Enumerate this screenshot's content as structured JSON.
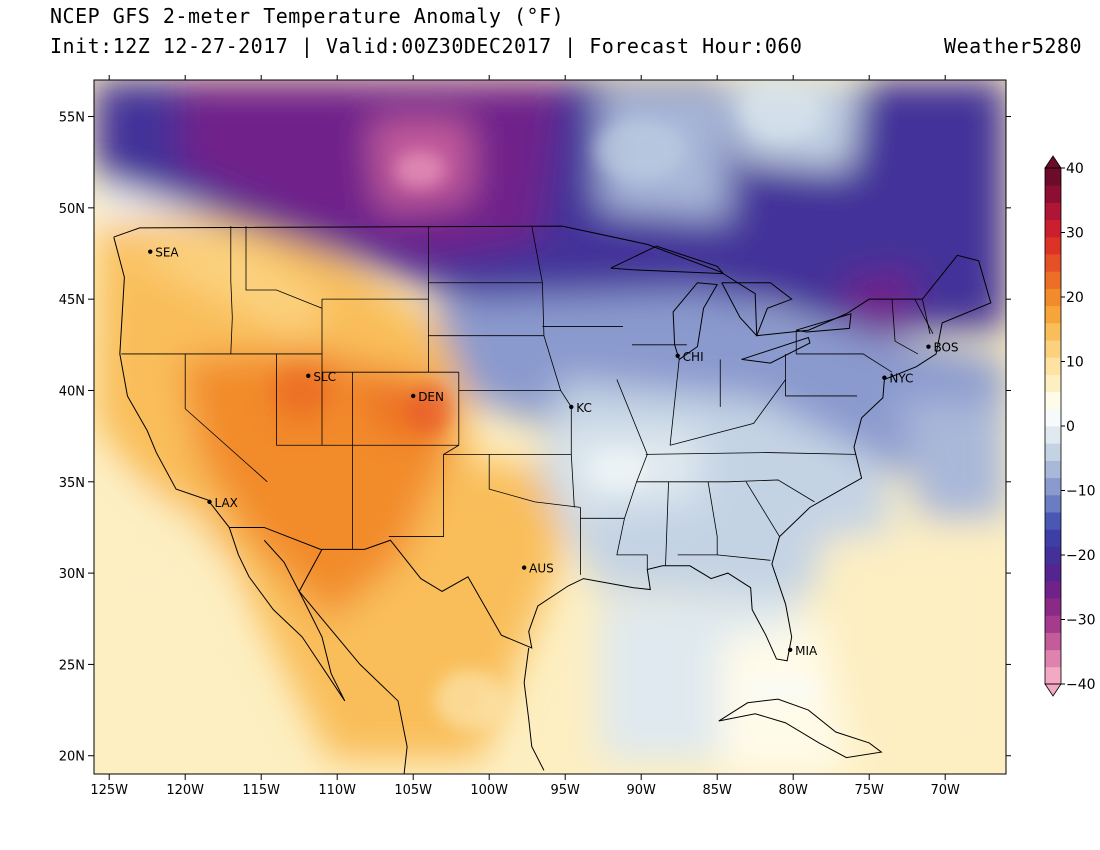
{
  "header": {
    "title": "NCEP GFS 2-meter Temperature Anomaly (°F)",
    "subtitle": "Init:12Z 12-27-2017 | Valid:00Z30DEC2017 | Forecast Hour:060",
    "brand": "Weather5280"
  },
  "map": {
    "lon_range": [
      -126,
      -66
    ],
    "lat_range": [
      19,
      57
    ],
    "lon_ticks": [
      {
        "value": -125,
        "label": "125W"
      },
      {
        "value": -120,
        "label": "120W"
      },
      {
        "value": -115,
        "label": "115W"
      },
      {
        "value": -110,
        "label": "110W"
      },
      {
        "value": -105,
        "label": "105W"
      },
      {
        "value": -100,
        "label": "100W"
      },
      {
        "value": -95,
        "label": "95W"
      },
      {
        "value": -90,
        "label": "90W"
      },
      {
        "value": -85,
        "label": "85W"
      },
      {
        "value": -80,
        "label": "80W"
      },
      {
        "value": -75,
        "label": "75W"
      },
      {
        "value": -70,
        "label": "70W"
      }
    ],
    "lat_ticks": [
      {
        "value": 55,
        "label": "55N"
      },
      {
        "value": 50,
        "label": "50N"
      },
      {
        "value": 45,
        "label": "45N"
      },
      {
        "value": 40,
        "label": "40N"
      },
      {
        "value": 35,
        "label": "35N"
      },
      {
        "value": 30,
        "label": "30N"
      },
      {
        "value": 25,
        "label": "25N"
      },
      {
        "value": 20,
        "label": "20N"
      }
    ],
    "cities": [
      {
        "name": "SEA",
        "lon": -122.3,
        "lat": 47.6
      },
      {
        "name": "SLC",
        "lon": -111.9,
        "lat": 40.8
      },
      {
        "name": "DEN",
        "lon": -105.0,
        "lat": 39.7
      },
      {
        "name": "LAX",
        "lon": -118.4,
        "lat": 33.9
      },
      {
        "name": "KC",
        "lon": -94.6,
        "lat": 39.1
      },
      {
        "name": "CHI",
        "lon": -87.6,
        "lat": 41.9
      },
      {
        "name": "NYC",
        "lon": -74.0,
        "lat": 40.7
      },
      {
        "name": "BOS",
        "lon": -71.1,
        "lat": 42.4
      },
      {
        "name": "AUS",
        "lon": -97.7,
        "lat": 30.3
      },
      {
        "name": "MIA",
        "lon": -80.2,
        "lat": 25.8
      }
    ]
  },
  "colorbar": {
    "labels": [
      {
        "value": 40,
        "label": "40"
      },
      {
        "value": 30,
        "label": "30"
      },
      {
        "value": 20,
        "label": "20"
      },
      {
        "value": 10,
        "label": "10"
      },
      {
        "value": 0,
        "label": "0"
      },
      {
        "value": -10,
        "label": "−10"
      },
      {
        "value": -20,
        "label": "−20"
      },
      {
        "value": -30,
        "label": "−30"
      },
      {
        "value": -40,
        "label": "−40"
      }
    ],
    "colors": [
      "#f3a9c4",
      "#dd83ad",
      "#c45b9b",
      "#a43b8d",
      "#8a2a86",
      "#6f238a",
      "#55258f",
      "#433099",
      "#3d3ea6",
      "#4a58b3",
      "#6a7cc2",
      "#8a9ace",
      "#a9b7d9",
      "#c4d3e4",
      "#dfe9ef",
      "#f6fafa",
      "#fffbe9",
      "#fdefc2",
      "#fde2a2",
      "#fbd17e",
      "#f9be5a",
      "#f6a53b",
      "#f28b2c",
      "#ec6e27",
      "#e65026",
      "#dd3327",
      "#cb1f2f",
      "#ae1537",
      "#8c0f33",
      "#6d0b2b"
    ]
  }
}
